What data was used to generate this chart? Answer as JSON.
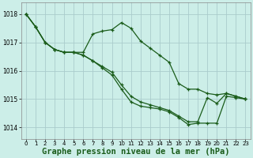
{
  "background_color": "#cceee8",
  "grid_color": "#aacccc",
  "line_color": "#1a5c1a",
  "xlabel": "Graphe pression niveau de la mer (hPa)",
  "xlabel_fontsize": 7.5,
  "ylim": [
    1013.6,
    1018.4
  ],
  "xlim": [
    -0.5,
    23.5
  ],
  "yticks": [
    1014,
    1015,
    1016,
    1017,
    1018
  ],
  "xticks": [
    0,
    1,
    2,
    3,
    4,
    5,
    6,
    7,
    8,
    9,
    10,
    11,
    12,
    13,
    14,
    15,
    16,
    17,
    18,
    19,
    20,
    21,
    22,
    23
  ],
  "series": [
    [
      1018.0,
      1017.55,
      1017.0,
      1016.75,
      1016.65,
      1016.65,
      1016.65,
      1017.3,
      1017.4,
      1017.45,
      1017.7,
      1017.5,
      1017.05,
      1016.8,
      1016.55,
      1016.3,
      1015.55,
      1015.35,
      1015.35,
      1015.2,
      1015.15,
      1015.2,
      1015.1,
      1015.0
    ],
    [
      1018.0,
      1017.55,
      1017.0,
      1016.75,
      1016.65,
      1016.65,
      1016.55,
      1016.35,
      1016.15,
      1015.95,
      1015.5,
      1015.1,
      1014.9,
      1014.8,
      1014.7,
      1014.6,
      1014.4,
      1014.2,
      1014.2,
      1015.05,
      1014.85,
      1015.2,
      1015.1,
      1015.0
    ],
    [
      1018.0,
      1017.55,
      1017.0,
      1016.75,
      1016.65,
      1016.65,
      1016.55,
      1016.35,
      1016.1,
      1015.85,
      1015.35,
      1014.9,
      1014.75,
      1014.7,
      1014.65,
      1014.55,
      1014.35,
      1014.1,
      1014.15,
      1014.15,
      1014.15,
      1015.1,
      1015.05,
      1015.0
    ]
  ]
}
